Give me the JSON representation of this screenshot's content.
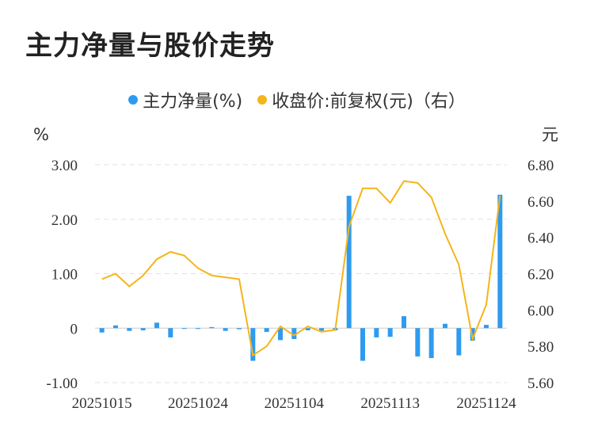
{
  "title": "主力净量与股价走势",
  "legend": {
    "net_label": "主力净量(%)",
    "price_label": "收盘价:前复权(元)（右）"
  },
  "colors": {
    "net": "#2e9bf0",
    "price": "#f4b51a",
    "grid": "#e2e2e2",
    "text": "#333333"
  },
  "chart_data": {
    "type": "bar",
    "left_unit": "%",
    "right_unit": "元",
    "x_tick_labels": [
      "20251015",
      "20251024",
      "20251104",
      "20251113",
      "20251124"
    ],
    "x_tick_indices": [
      0,
      7,
      14,
      21,
      28
    ],
    "y_left": {
      "min": -1.0,
      "max": 3.0,
      "ticks": [
        -1.0,
        0,
        1.0,
        2.0,
        3.0
      ],
      "tick_labels": [
        "-1.00",
        "0",
        "1.00",
        "2.00",
        "3.00"
      ]
    },
    "y_right": {
      "min": 5.6,
      "max": 6.8,
      "ticks": [
        5.6,
        5.8,
        6.0,
        6.2,
        6.4,
        6.6,
        6.8
      ],
      "tick_labels": [
        "5.60",
        "5.80",
        "6.00",
        "6.20",
        "6.40",
        "6.60",
        "6.80"
      ]
    },
    "net_series": [
      -0.08,
      0.05,
      -0.05,
      -0.04,
      0.1,
      -0.17,
      -0.01,
      -0.01,
      0.02,
      -0.05,
      -0.02,
      -0.6,
      -0.07,
      -0.22,
      -0.2,
      -0.04,
      -0.05,
      -0.04,
      2.43,
      -0.6,
      -0.17,
      -0.16,
      0.22,
      -0.52,
      -0.55,
      0.08,
      -0.5,
      -0.23,
      0.06,
      2.45
    ],
    "price_series": [
      6.17,
      6.2,
      6.13,
      6.19,
      6.28,
      6.32,
      6.3,
      6.23,
      6.19,
      6.18,
      6.17,
      5.75,
      5.8,
      5.91,
      5.86,
      5.91,
      5.88,
      5.89,
      6.46,
      6.67,
      6.67,
      6.59,
      6.71,
      6.7,
      6.62,
      6.42,
      6.25,
      5.84,
      6.03,
      6.63
    ]
  }
}
